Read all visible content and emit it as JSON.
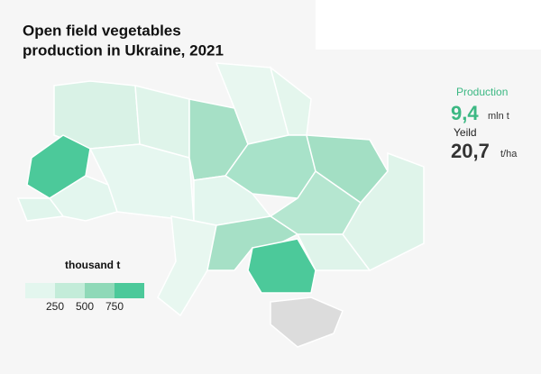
{
  "header": {
    "title_lines": [
      "Open field vegetables",
      "production in Ukraine, 2021"
    ]
  },
  "stats": {
    "production_label": "Production",
    "production_value": "9,4",
    "production_unit": "mln t",
    "yield_label": "Yeild",
    "yield_value": "20,7",
    "yield_unit": "t/ha"
  },
  "legend": {
    "title": "thousand t",
    "ticks": [
      250,
      500,
      750
    ],
    "colors": [
      "#e3f6ee",
      "#c3ecd9",
      "#8fd9b8",
      "#4cc99a"
    ]
  }
}
